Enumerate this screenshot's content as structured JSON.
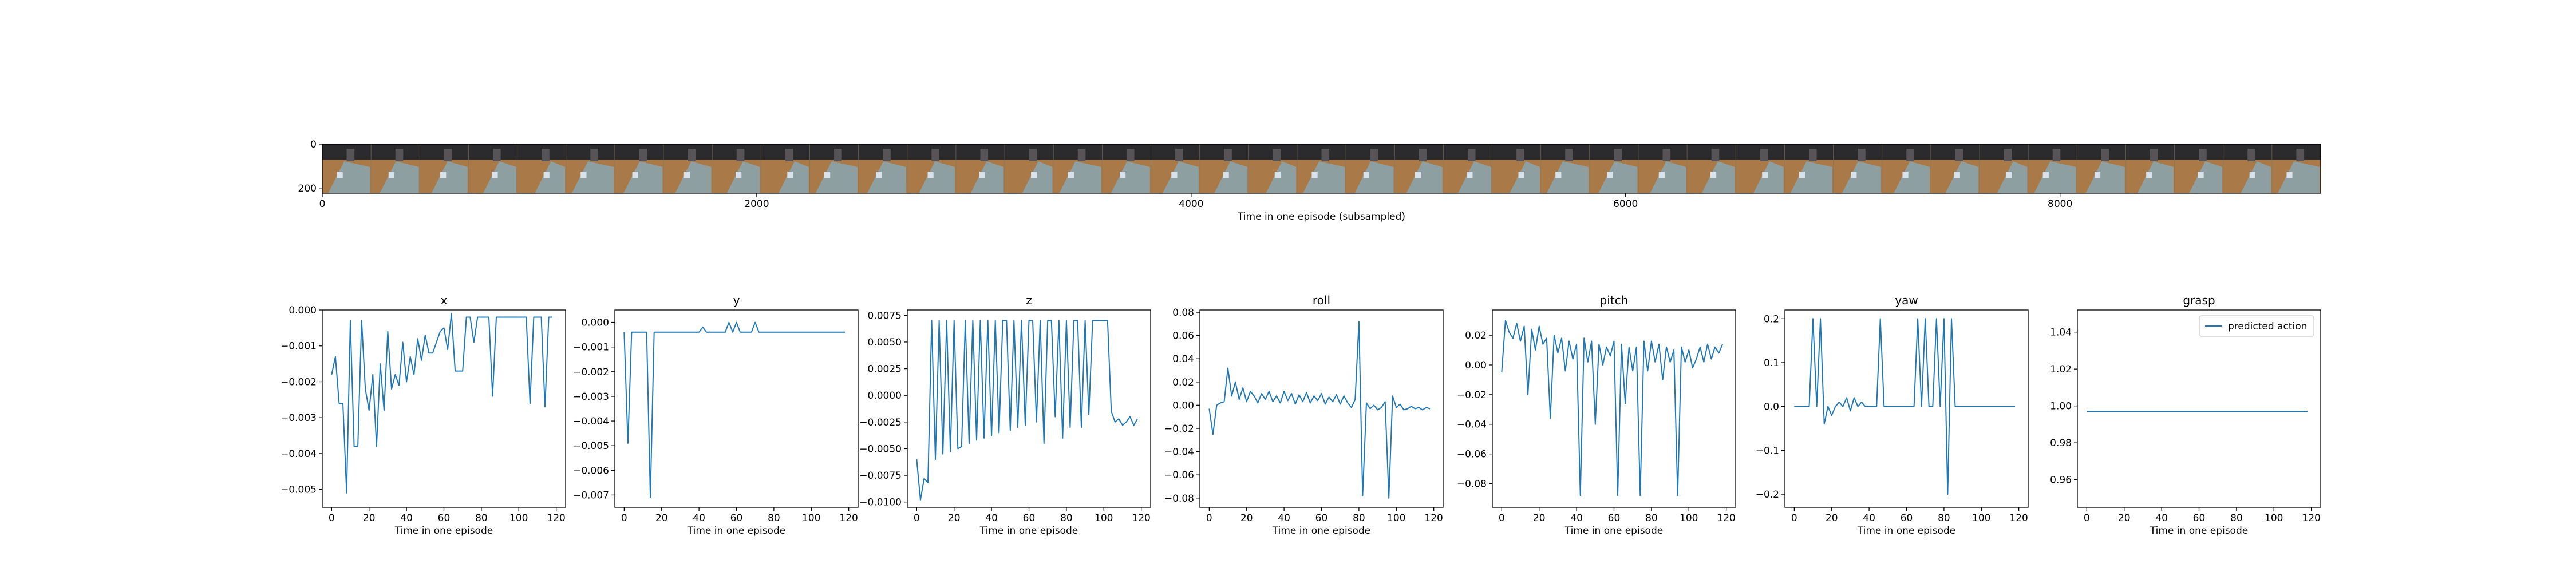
{
  "filmstrip": {
    "xlabel": "Time in one episode (subsampled)",
    "xticks": [
      0,
      2000,
      4000,
      6000,
      8000
    ],
    "yticks": [
      0,
      200
    ],
    "xlim": [
      0,
      9200
    ],
    "ylim": [
      224,
      0
    ],
    "frame_count": 41,
    "frame_colors": {
      "wall": "#2b2a2c",
      "table": "#a97a47",
      "gripper": "#8e9fa2",
      "arm": "#565457",
      "accent": "#d8e2ea"
    }
  },
  "chart_data": [
    {
      "type": "line",
      "title": "x",
      "xlabel": "Time in one episode",
      "xlim": [
        -5,
        125
      ],
      "ylim": [
        -0.0055,
        0.0
      ],
      "xticks": [
        0,
        20,
        40,
        60,
        80,
        100,
        120
      ],
      "yticks": [
        -0.005,
        -0.004,
        -0.003,
        -0.002,
        -0.001,
        0.0
      ],
      "ytick_labels": [
        "−0.005",
        "−0.004",
        "−0.003",
        "−0.002",
        "−0.001",
        "0.000"
      ],
      "x": [
        0,
        2,
        4,
        6,
        8,
        10,
        12,
        14,
        16,
        18,
        20,
        22,
        24,
        26,
        28,
        30,
        32,
        34,
        36,
        38,
        40,
        42,
        44,
        46,
        48,
        50,
        52,
        54,
        56,
        58,
        60,
        62,
        64,
        66,
        68,
        70,
        72,
        74,
        76,
        78,
        80,
        82,
        84,
        86,
        88,
        90,
        92,
        94,
        96,
        98,
        100,
        102,
        104,
        106,
        108,
        110,
        112,
        114,
        116,
        118
      ],
      "y": [
        -0.0018,
        -0.0013,
        -0.0026,
        -0.0026,
        -0.0051,
        -0.0003,
        -0.0038,
        -0.0038,
        -0.0003,
        -0.0022,
        -0.0028,
        -0.0018,
        -0.0038,
        -0.0015,
        -0.0028,
        -0.0006,
        -0.0022,
        -0.0018,
        -0.0021,
        -0.0009,
        -0.002,
        -0.0013,
        -0.0018,
        -0.0008,
        -0.0014,
        -0.0007,
        -0.0012,
        -0.0012,
        -0.0009,
        -0.0006,
        -0.0005,
        -0.0011,
        -0.0001,
        -0.0017,
        -0.0017,
        -0.0017,
        -0.0002,
        -0.0002,
        -0.0009,
        -0.0002,
        -0.0002,
        -0.0002,
        -0.0002,
        -0.0024,
        -0.0002,
        -0.0002,
        -0.0002,
        -0.0002,
        -0.0002,
        -0.0002,
        -0.0002,
        -0.0002,
        -0.0002,
        -0.0026,
        -0.0002,
        -0.0002,
        -0.0002,
        -0.0027,
        -0.0002,
        -0.0002
      ],
      "series": [
        {
          "name": "predicted action"
        }
      ]
    },
    {
      "type": "line",
      "title": "y",
      "xlabel": "Time in one episode",
      "xlim": [
        -5,
        125
      ],
      "ylim": [
        -0.0075,
        0.0005
      ],
      "xticks": [
        0,
        20,
        40,
        60,
        80,
        100,
        120
      ],
      "yticks": [
        -0.007,
        -0.006,
        -0.005,
        -0.004,
        -0.003,
        -0.002,
        -0.001,
        0.0
      ],
      "ytick_labels": [
        "−0.007",
        "−0.006",
        "−0.005",
        "−0.004",
        "−0.003",
        "−0.002",
        "−0.001",
        "0.000"
      ],
      "x": [
        0,
        2,
        4,
        6,
        8,
        10,
        12,
        14,
        16,
        18,
        20,
        22,
        24,
        26,
        28,
        30,
        32,
        34,
        36,
        38,
        40,
        42,
        44,
        46,
        48,
        50,
        52,
        54,
        56,
        58,
        60,
        62,
        64,
        66,
        68,
        70,
        72,
        74,
        76,
        78,
        80,
        82,
        84,
        86,
        88,
        90,
        92,
        94,
        96,
        98,
        100,
        102,
        104,
        106,
        108,
        110,
        112,
        114,
        116,
        118
      ],
      "y": [
        -0.0004,
        -0.0049,
        -0.0004,
        -0.0004,
        -0.0004,
        -0.0004,
        -0.0004,
        -0.0071,
        -0.0004,
        -0.0004,
        -0.0004,
        -0.0004,
        -0.0004,
        -0.0004,
        -0.0004,
        -0.0004,
        -0.0004,
        -0.0004,
        -0.0004,
        -0.0004,
        -0.0004,
        -0.0002,
        -0.0004,
        -0.0004,
        -0.0004,
        -0.0004,
        -0.0004,
        -0.0004,
        0.0,
        -0.0004,
        0.0,
        -0.0004,
        -0.0004,
        -0.0004,
        -0.0004,
        0.0,
        -0.0004,
        -0.0004,
        -0.0004,
        -0.0004,
        -0.0004,
        -0.0004,
        -0.0004,
        -0.0004,
        -0.0004,
        -0.0004,
        -0.0004,
        -0.0004,
        -0.0004,
        -0.0004,
        -0.0004,
        -0.0004,
        -0.0004,
        -0.0004,
        -0.0004,
        -0.0004,
        -0.0004,
        -0.0004,
        -0.0004,
        -0.0004
      ],
      "series": [
        {
          "name": "predicted action"
        }
      ]
    },
    {
      "type": "line",
      "title": "z",
      "xlabel": "Time in one episode",
      "xlim": [
        -5,
        125
      ],
      "ylim": [
        -0.0105,
        0.008
      ],
      "xticks": [
        0,
        20,
        40,
        60,
        80,
        100,
        120
      ],
      "yticks": [
        -0.01,
        -0.0075,
        -0.005,
        -0.0025,
        0.0,
        0.0025,
        0.005,
        0.0075
      ],
      "ytick_labels": [
        "−0.0100",
        "−0.0075",
        "−0.0050",
        "−0.0025",
        "0.0000",
        "0.0025",
        "0.0050",
        "0.0075"
      ],
      "x": [
        0,
        2,
        4,
        6,
        8,
        10,
        12,
        14,
        16,
        18,
        20,
        22,
        24,
        26,
        28,
        30,
        32,
        34,
        36,
        38,
        40,
        42,
        44,
        46,
        48,
        50,
        52,
        54,
        56,
        58,
        60,
        62,
        64,
        66,
        68,
        70,
        72,
        74,
        76,
        78,
        80,
        82,
        84,
        86,
        88,
        90,
        92,
        94,
        96,
        98,
        100,
        102,
        104,
        106,
        108,
        110,
        112,
        114,
        116,
        118
      ],
      "y": [
        -0.006,
        -0.0098,
        -0.0078,
        -0.0082,
        0.007,
        -0.006,
        0.007,
        -0.0055,
        0.007,
        -0.0053,
        0.007,
        -0.005,
        -0.0048,
        0.007,
        -0.0045,
        0.007,
        -0.0042,
        0.007,
        -0.004,
        0.007,
        -0.0038,
        0.007,
        -0.0035,
        0.007,
        0.007,
        -0.0033,
        0.007,
        -0.003,
        0.007,
        -0.0028,
        0.007,
        0.007,
        -0.0025,
        0.007,
        -0.0045,
        0.007,
        0.007,
        -0.002,
        0.007,
        -0.004,
        0.007,
        -0.003,
        0.007,
        0.007,
        -0.003,
        0.007,
        -0.0018,
        0.007,
        0.007,
        0.007,
        0.007,
        0.007,
        -0.0015,
        -0.0025,
        -0.0022,
        -0.0028,
        -0.0025,
        -0.002,
        -0.0028,
        -0.0022
      ],
      "series": [
        {
          "name": "predicted action"
        }
      ]
    },
    {
      "type": "line",
      "title": "roll",
      "xlabel": "Time in one episode",
      "xlim": [
        -5,
        125
      ],
      "ylim": [
        -0.088,
        0.082
      ],
      "xticks": [
        0,
        20,
        40,
        60,
        80,
        100,
        120
      ],
      "yticks": [
        -0.08,
        -0.06,
        -0.04,
        -0.02,
        0.0,
        0.02,
        0.04,
        0.06,
        0.08
      ],
      "ytick_labels": [
        "−0.08",
        "−0.06",
        "−0.04",
        "−0.02",
        "0.00",
        "0.02",
        "0.04",
        "0.06",
        "0.08"
      ],
      "x": [
        0,
        2,
        4,
        6,
        8,
        10,
        12,
        14,
        16,
        18,
        20,
        22,
        24,
        26,
        28,
        30,
        32,
        34,
        36,
        38,
        40,
        42,
        44,
        46,
        48,
        50,
        52,
        54,
        56,
        58,
        60,
        62,
        64,
        66,
        68,
        70,
        72,
        74,
        76,
        78,
        80,
        82,
        84,
        86,
        88,
        90,
        92,
        94,
        96,
        98,
        100,
        102,
        104,
        106,
        108,
        110,
        112,
        114,
        116,
        118
      ],
      "y": [
        -0.003,
        -0.025,
        0.0,
        0.002,
        0.003,
        0.032,
        0.008,
        0.02,
        0.005,
        0.015,
        0.003,
        0.012,
        0.008,
        0.002,
        0.01,
        0.005,
        0.012,
        0.003,
        0.008,
        0.002,
        0.012,
        0.004,
        0.01,
        0.001,
        0.009,
        0.003,
        0.011,
        0.002,
        0.008,
        0.004,
        0.01,
        0.001,
        0.007,
        0.003,
        0.009,
        0.001,
        0.008,
        0.002,
        -0.002,
        0.005,
        0.072,
        -0.078,
        0.002,
        -0.003,
        0.0,
        -0.004,
        -0.002,
        0.003,
        -0.08,
        0.008,
        -0.002,
        0.001,
        -0.004,
        -0.003,
        -0.001,
        -0.003,
        -0.002,
        -0.004,
        -0.002,
        -0.003
      ],
      "series": [
        {
          "name": "predicted action"
        }
      ]
    },
    {
      "type": "line",
      "title": "pitch",
      "xlabel": "Time in one episode",
      "xlim": [
        -5,
        125
      ],
      "ylim": [
        -0.096,
        0.037
      ],
      "xticks": [
        0,
        20,
        40,
        60,
        80,
        100,
        120
      ],
      "yticks": [
        -0.08,
        -0.06,
        -0.04,
        -0.02,
        0.0,
        0.02
      ],
      "ytick_labels": [
        "−0.08",
        "−0.06",
        "−0.04",
        "−0.02",
        "0.00",
        "0.02"
      ],
      "x": [
        0,
        2,
        4,
        6,
        8,
        10,
        12,
        14,
        16,
        18,
        20,
        22,
        24,
        26,
        28,
        30,
        32,
        34,
        36,
        38,
        40,
        42,
        44,
        46,
        48,
        50,
        52,
        54,
        56,
        58,
        60,
        62,
        64,
        66,
        68,
        70,
        72,
        74,
        76,
        78,
        80,
        82,
        84,
        86,
        88,
        90,
        92,
        94,
        96,
        98,
        100,
        102,
        104,
        106,
        108,
        110,
        112,
        114,
        116,
        118
      ],
      "y": [
        -0.005,
        0.03,
        0.022,
        0.018,
        0.028,
        0.016,
        0.026,
        -0.02,
        0.024,
        0.01,
        0.026,
        0.014,
        0.018,
        -0.036,
        0.02,
        0.008,
        0.018,
        -0.004,
        0.016,
        0.004,
        0.014,
        -0.088,
        0.018,
        0.002,
        0.016,
        -0.04,
        0.014,
        0.0,
        0.012,
        0.006,
        0.016,
        -0.088,
        0.014,
        -0.026,
        0.012,
        -0.004,
        0.012,
        -0.088,
        0.016,
        -0.004,
        0.016,
        0.002,
        0.014,
        -0.01,
        0.012,
        0.002,
        0.01,
        -0.088,
        0.012,
        0.002,
        0.01,
        -0.002,
        0.004,
        0.012,
        0.002,
        0.014,
        0.004,
        0.012,
        0.008,
        0.014
      ],
      "series": [
        {
          "name": "predicted action"
        }
      ]
    },
    {
      "type": "line",
      "title": "yaw",
      "xlabel": "Time in one episode",
      "xlim": [
        -5,
        125
      ],
      "ylim": [
        -0.23,
        0.22
      ],
      "xticks": [
        0,
        20,
        40,
        60,
        80,
        100,
        120
      ],
      "yticks": [
        -0.2,
        -0.1,
        0.0,
        0.1,
        0.2
      ],
      "ytick_labels": [
        "−0.2",
        "−0.1",
        "0.0",
        "0.1",
        "0.2"
      ],
      "x": [
        0,
        2,
        4,
        6,
        8,
        10,
        12,
        14,
        16,
        18,
        20,
        22,
        24,
        26,
        28,
        30,
        32,
        34,
        36,
        38,
        40,
        42,
        44,
        46,
        48,
        50,
        52,
        54,
        56,
        58,
        60,
        62,
        64,
        66,
        68,
        70,
        72,
        74,
        76,
        78,
        80,
        82,
        84,
        86,
        88,
        90,
        92,
        94,
        96,
        98,
        100,
        102,
        104,
        106,
        108,
        110,
        112,
        114,
        116,
        118
      ],
      "y": [
        0.0,
        0.0,
        0.0,
        0.0,
        0.0,
        0.2,
        0.0,
        0.2,
        -0.04,
        0.0,
        -0.02,
        0.0,
        0.01,
        0.0,
        0.02,
        -0.01,
        0.02,
        0.0,
        0.01,
        0.0,
        0.0,
        0.0,
        0.0,
        0.2,
        0.0,
        0.0,
        0.0,
        0.0,
        0.0,
        0.0,
        0.0,
        0.0,
        0.0,
        0.2,
        0.0,
        0.2,
        0.0,
        0.0,
        0.2,
        0.0,
        0.2,
        -0.2,
        0.2,
        0.0,
        0.0,
        0.0,
        0.0,
        0.0,
        0.0,
        0.0,
        0.0,
        0.0,
        0.0,
        0.0,
        0.0,
        0.0,
        0.0,
        0.0,
        0.0,
        0.0
      ],
      "series": [
        {
          "name": "predicted action"
        }
      ]
    },
    {
      "type": "line",
      "title": "grasp",
      "xlabel": "Time in one episode",
      "xlim": [
        -5,
        125
      ],
      "ylim": [
        0.945,
        1.052
      ],
      "xticks": [
        0,
        20,
        40,
        60,
        80,
        100,
        120
      ],
      "yticks": [
        0.96,
        0.98,
        1.0,
        1.02,
        1.04
      ],
      "ytick_labels": [
        "0.96",
        "0.98",
        "1.00",
        "1.02",
        "1.04"
      ],
      "x": [
        0,
        118
      ],
      "y": [
        0.997,
        0.997
      ],
      "series": [
        {
          "name": "predicted action"
        }
      ],
      "legend": {
        "placement": "upper right",
        "label": "predicted action"
      }
    }
  ],
  "style": {
    "line_color": "#1f77b4",
    "axis_color": "#000000"
  }
}
